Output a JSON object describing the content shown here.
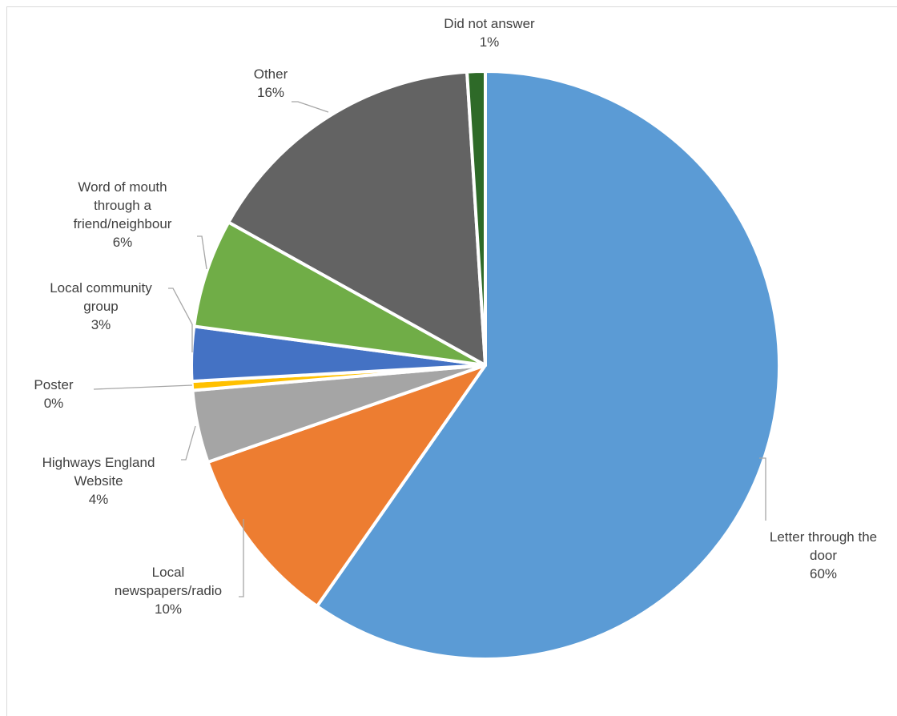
{
  "chart_data": {
    "type": "pie",
    "title": "",
    "categories": [
      "Letter through the door",
      "Local newspapers/radio",
      "Highways England Website",
      "Poster",
      "Local community group",
      "Word of mouth through a friend/neighbour",
      "Other",
      "Did not answer"
    ],
    "values": [
      60,
      10,
      4,
      0.5,
      3,
      6,
      16,
      1
    ],
    "start_angle_deg": 0,
    "direction": "clockwise",
    "legend": "none",
    "slices": [
      {
        "name": "letter",
        "label_lines": [
          "Letter through the",
          "door",
          "60%"
        ],
        "color": "#5b9bd5"
      },
      {
        "name": "newspapers",
        "label_lines": [
          "Local",
          "newspapers/radio",
          "10%"
        ],
        "color": "#ed7d31"
      },
      {
        "name": "website",
        "label_lines": [
          "Highways England",
          "Website",
          "4%"
        ],
        "color": "#a5a5a5"
      },
      {
        "name": "poster",
        "label_lines": [
          "Poster",
          "0%"
        ],
        "color": "#ffc000"
      },
      {
        "name": "community",
        "label_lines": [
          "Local community",
          "group",
          "3%"
        ],
        "color": "#4472c4"
      },
      {
        "name": "word-of-mouth",
        "label_lines": [
          "Word of mouth",
          "through a",
          "friend/neighbour",
          "6%"
        ],
        "color": "#70ad47"
      },
      {
        "name": "other",
        "label_lines": [
          "Other",
          "16%"
        ],
        "color": "#636363"
      },
      {
        "name": "no-answer",
        "label_lines": [
          "Did not answer",
          "1%"
        ],
        "color": "#2e6a28"
      }
    ]
  }
}
